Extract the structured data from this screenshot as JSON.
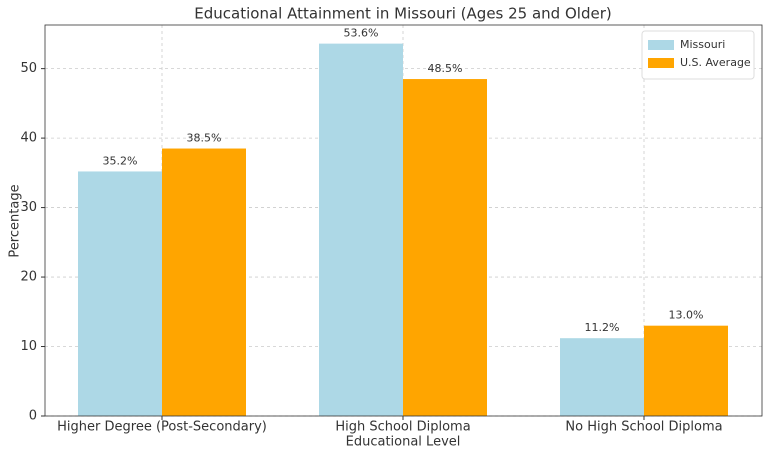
{
  "chart_data": {
    "type": "bar",
    "title": "Educational Attainment in Missouri (Ages 25 and Older)",
    "x_label": "Educational Level",
    "y_label": "Percentage",
    "categories": [
      "Higher Degree (Post-Secondary)",
      "High School Diploma",
      "No High School Diploma"
    ],
    "series": [
      {
        "name": "Missouri",
        "color": "#add8e6",
        "values": [
          35.2,
          53.6,
          11.2
        ],
        "value_labels": [
          "35.2%",
          "53.6%",
          "11.2%"
        ]
      },
      {
        "name": "U.S. Average",
        "color": "#ffa500",
        "values": [
          38.5,
          48.5,
          13.0
        ],
        "value_labels": [
          "38.5%",
          "48.5%",
          "13.0%"
        ]
      }
    ],
    "ylim": [
      0,
      56.28
    ],
    "yticks": [
      0,
      10,
      20,
      30,
      40,
      50
    ],
    "grid": true,
    "legend": "upper right"
  }
}
